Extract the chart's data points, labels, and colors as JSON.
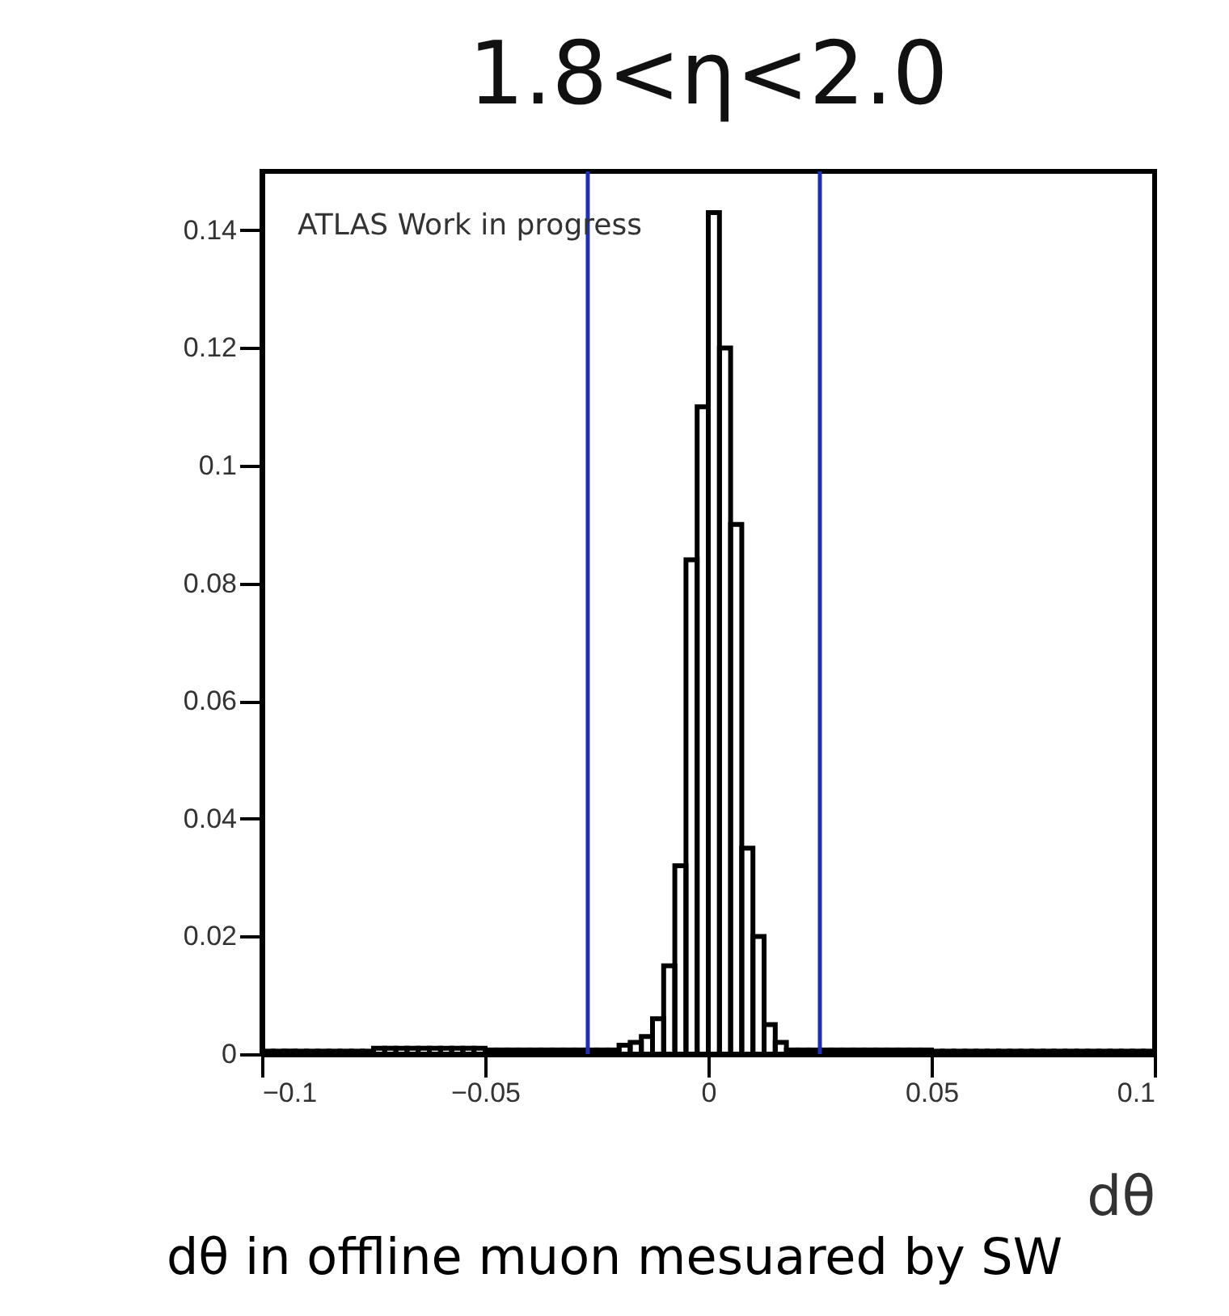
{
  "chart_data": {
    "type": "histogram",
    "title": "1.8<η<2.0",
    "xlabel": "dθ",
    "annotations": [
      "ATLAS Work in progress",
      "dθ in offline muon mesuared by SW"
    ],
    "bins": [
      -0.1,
      -0.0975,
      -0.095,
      -0.0925,
      -0.09,
      -0.0875,
      -0.085,
      -0.0825,
      -0.08,
      -0.0775,
      -0.075,
      -0.0725,
      -0.07,
      -0.0675,
      -0.065,
      -0.0625,
      -0.06,
      -0.0575,
      -0.055,
      -0.0525,
      -0.05,
      -0.0475,
      -0.045,
      -0.0425,
      -0.04,
      -0.0375,
      -0.035,
      -0.0325,
      -0.03,
      -0.0275,
      -0.025,
      -0.0225,
      -0.02,
      -0.0175,
      -0.015,
      -0.0125,
      -0.01,
      -0.0075,
      -0.005,
      -0.0025,
      0,
      0.0025,
      0.005,
      0.0075,
      0.01,
      0.0125,
      0.015,
      0.0175,
      0.02,
      0.0225,
      0.025,
      0.0275,
      0.03,
      0.0325,
      0.035,
      0.0375,
      0.04,
      0.0425,
      0.045,
      0.0475,
      0.05,
      0.0525,
      0.055,
      0.0575,
      0.06,
      0.0625,
      0.065,
      0.0675,
      0.07,
      0.0725,
      0.075,
      0.0775,
      0.08,
      0.0825,
      0.085,
      0.0875,
      0.09,
      0.0925,
      0.095,
      0.0975,
      0.1
    ],
    "values": [
      0.0005,
      0.0005,
      0.0005,
      0.0005,
      0.0005,
      0.0005,
      0.0005,
      0.0005,
      0.0005,
      0.0005,
      0.001,
      0.001,
      0.001,
      0.001,
      0.001,
      0.001,
      0.001,
      0.001,
      0.001,
      0.001,
      0.0007,
      0.0007,
      0.0007,
      0.0007,
      0.0007,
      0.0007,
      0.0007,
      0.0007,
      0.0007,
      0.0007,
      0.0007,
      0.0007,
      0.0015,
      0.002,
      0.003,
      0.006,
      0.015,
      0.032,
      0.084,
      0.11,
      0.143,
      0.12,
      0.09,
      0.035,
      0.02,
      0.005,
      0.002,
      0.0007,
      0.0007,
      0.0007,
      0.0007,
      0.0007,
      0.0007,
      0.0007,
      0.0007,
      0.0007,
      0.0007,
      0.0007,
      0.0007,
      0.0007,
      0.0005,
      0.0005,
      0.0005,
      0.0005,
      0.0005,
      0.0005,
      0.0005,
      0.0005,
      0.0005,
      0.0005,
      0.0005,
      0.0005,
      0.0005,
      0.0005,
      0.0005,
      0.0005,
      0.0005,
      0.0005,
      0.0005,
      0.0005
    ],
    "color": "#000000",
    "xlim": [
      -0.1,
      0.1
    ],
    "xticks": [
      -0.1,
      -0.05,
      0,
      0.05,
      0.1
    ],
    "ylim": [
      0,
      0.15
    ],
    "yticks": [
      0,
      0.02,
      0.04,
      0.06,
      0.08,
      0.1,
      0.12,
      0.14
    ],
    "ref_lines": [
      {
        "axis": "x",
        "value": -0.027,
        "color": "#2030b0"
      },
      {
        "axis": "x",
        "value": 0.025,
        "color": "#2030b0"
      }
    ],
    "grid": false
  }
}
